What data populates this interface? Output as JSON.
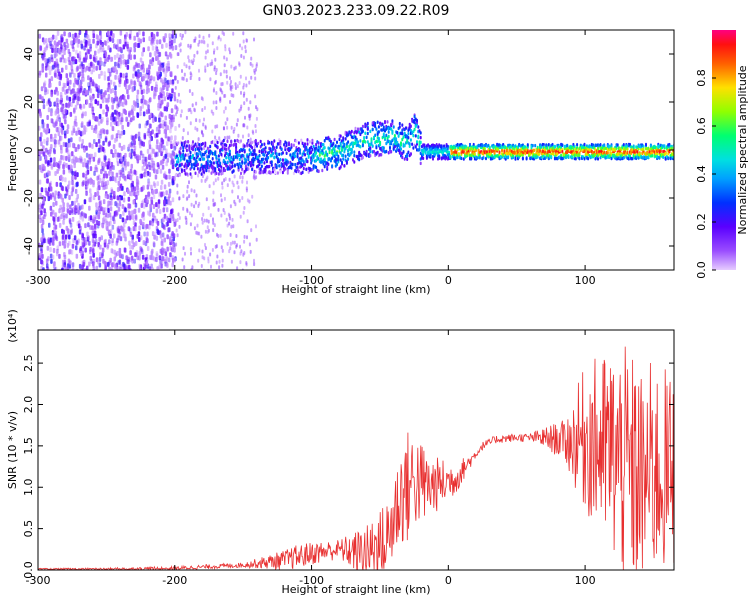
{
  "figure_title": "GN03.2023.233.09.22.R09",
  "chart_data": [
    {
      "type": "heatmap",
      "title": "GN03.2023.233.09.22.R09",
      "xlabel": "Height of straight line (km)",
      "ylabel": "Frequency (Hz)",
      "xlim": [
        -300,
        165
      ],
      "ylim": [
        -50,
        50
      ],
      "xticks": [
        -300,
        -200,
        -100,
        0,
        100
      ],
      "yticks": [
        -40,
        -20,
        0,
        20,
        40
      ],
      "colorbar": {
        "label": "Normalized spectral amplitude",
        "range": [
          0.0,
          1.0
        ],
        "ticks": [
          0.0,
          0.2,
          0.4,
          0.6,
          0.8
        ],
        "colormap": [
          "#ffffff",
          "#c080ff",
          "#6a00ff",
          "#0040ff",
          "#00d0ff",
          "#00ff80",
          "#80ff00",
          "#ffb000",
          "#ff2000",
          "#ff0080"
        ]
      },
      "features": {
        "noise_region_x": [
          -300,
          -200
        ],
        "signal_ridge": [
          {
            "x": -200,
            "y": -3
          },
          {
            "x": -150,
            "y": -2
          },
          {
            "x": -100,
            "y": -2
          },
          {
            "x": -80,
            "y": 0
          },
          {
            "x": -60,
            "y": 5
          },
          {
            "x": -40,
            "y": 6
          },
          {
            "x": -30,
            "y": 3
          },
          {
            "x": -25,
            "y": 10
          },
          {
            "x": -20,
            "y": 0
          },
          {
            "x": 0,
            "y": 0
          },
          {
            "x": 50,
            "y": 0
          },
          {
            "x": 100,
            "y": 0
          },
          {
            "x": 165,
            "y": 0
          }
        ],
        "peak_amplitude_x": [
          0,
          165
        ]
      }
    },
    {
      "type": "line",
      "xlabel": "Height of straight line (km)",
      "ylabel": "SNR (10 * v/v)",
      "y_multiplier": "(x10⁴)",
      "xlim": [
        -300,
        165
      ],
      "ylim": [
        0,
        2.9
      ],
      "xticks": [
        -300,
        -200,
        -100,
        0,
        100
      ],
      "yticks": [
        0.0,
        0.5,
        1.0,
        1.5,
        2.0,
        2.5
      ],
      "series_color": "#e03030",
      "envelope": [
        {
          "x": -300,
          "y": 0.01
        },
        {
          "x": -250,
          "y": 0.01
        },
        {
          "x": -200,
          "y": 0.02
        },
        {
          "x": -150,
          "y": 0.06
        },
        {
          "x": -120,
          "y": 0.12
        },
        {
          "x": -100,
          "y": 0.2
        },
        {
          "x": -80,
          "y": 0.25
        },
        {
          "x": -60,
          "y": 0.2
        },
        {
          "x": -45,
          "y": 0.35
        },
        {
          "x": -35,
          "y": 0.9
        },
        {
          "x": -25,
          "y": 1.1
        },
        {
          "x": -15,
          "y": 1.0
        },
        {
          "x": -5,
          "y": 1.05
        },
        {
          "x": 5,
          "y": 1.1
        },
        {
          "x": 15,
          "y": 1.3
        },
        {
          "x": 25,
          "y": 1.5
        },
        {
          "x": 35,
          "y": 1.58
        },
        {
          "x": 50,
          "y": 1.6
        },
        {
          "x": 65,
          "y": 1.6
        },
        {
          "x": 80,
          "y": 1.58
        },
        {
          "x": 90,
          "y": 1.55
        },
        {
          "x": 100,
          "y": 1.6
        },
        {
          "x": 110,
          "y": 1.5
        },
        {
          "x": 120,
          "y": 1.4
        },
        {
          "x": 130,
          "y": 1.2
        },
        {
          "x": 140,
          "y": 1.1
        },
        {
          "x": 150,
          "y": 1.2
        },
        {
          "x": 165,
          "y": 1.2
        }
      ],
      "noise_amplitude": [
        {
          "x": -300,
          "y": 0.01
        },
        {
          "x": -150,
          "y": 0.03
        },
        {
          "x": -110,
          "y": 0.15
        },
        {
          "x": -80,
          "y": 0.12
        },
        {
          "x": -45,
          "y": 0.5
        },
        {
          "x": -30,
          "y": 0.7
        },
        {
          "x": -10,
          "y": 0.35
        },
        {
          "x": 20,
          "y": 0.05
        },
        {
          "x": 60,
          "y": 0.05
        },
        {
          "x": 85,
          "y": 0.25
        },
        {
          "x": 100,
          "y": 0.9
        },
        {
          "x": 130,
          "y": 1.5
        },
        {
          "x": 165,
          "y": 1.2
        }
      ]
    }
  ]
}
